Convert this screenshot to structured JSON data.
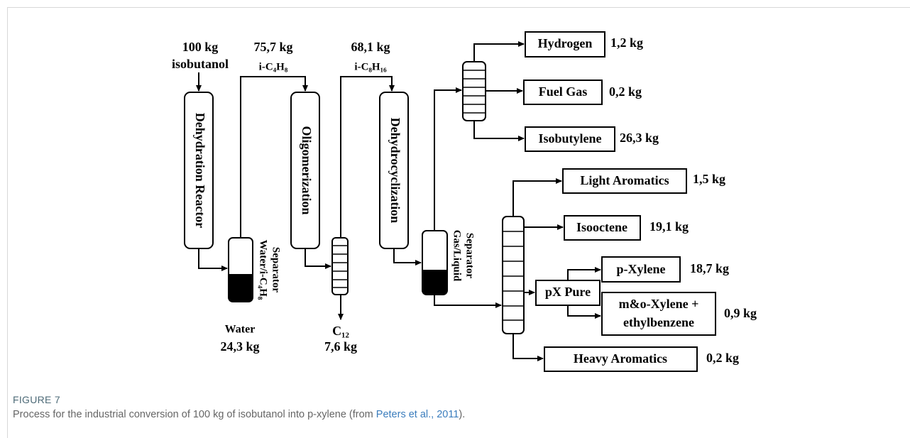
{
  "inputs": {
    "feed_amount": "100 kg",
    "feed_name": "isobutanol",
    "stream1_amount": "75,7 kg",
    "stream1_name": "i-C₄H₈",
    "stream2_amount": "68,1 kg",
    "stream2_name": "i-C₈H₁₆"
  },
  "units": {
    "dehydration": "Dehydration Reactor",
    "oligomerization": "Oligomerization",
    "dehydrocyclization": "Dehydrocyclization",
    "water_separator": [
      "Water/i-C₄H₈",
      "Separator"
    ],
    "gl_separator": [
      "Gas/Liquid",
      "Separator"
    ],
    "px_pure": "pX Pure"
  },
  "byproducts": {
    "water_name": "Water",
    "water_amount": "24,3 kg",
    "c12_name": "C₁₂",
    "c12_amount": "7,6 kg"
  },
  "products": [
    {
      "name": "Hydrogen",
      "amount": "1,2 kg"
    },
    {
      "name": "Fuel Gas",
      "amount": "0,2 kg"
    },
    {
      "name": "Isobutylene",
      "amount": "26,3 kg"
    },
    {
      "name": "Light Aromatics",
      "amount": "1,5 kg"
    },
    {
      "name": "Isooctene",
      "amount": "19,1 kg"
    },
    {
      "name": "p-Xylene",
      "amount": "18,7 kg"
    },
    {
      "name": [
        "m&o-Xylene +",
        "ethylbenzene"
      ],
      "amount": "0,9 kg"
    },
    {
      "name": "Heavy Aromatics",
      "amount": "0,2 kg"
    }
  ],
  "caption": {
    "label": "FIGURE 7",
    "text": "Process for the industrial conversion of 100 kg of isobutanol into p-xylene (from ",
    "link": "Peters et al., 2011",
    "end": ")."
  }
}
